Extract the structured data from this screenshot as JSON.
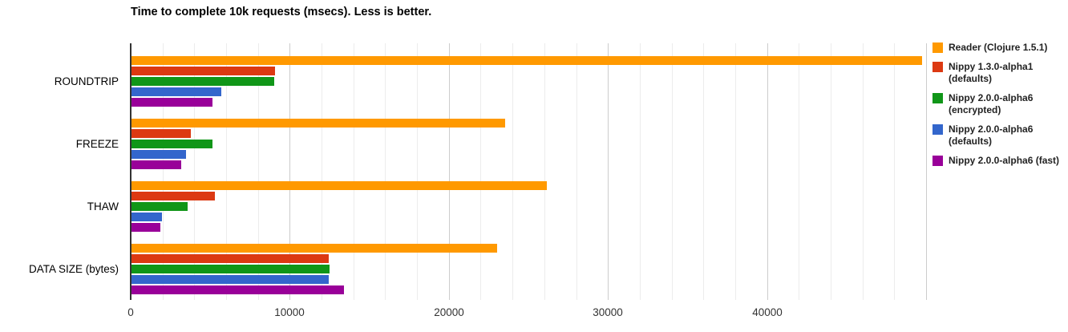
{
  "chart_data": {
    "type": "bar",
    "orientation": "horizontal",
    "title": "Time to complete 10k requests (msecs). Less is better.",
    "xlabel": "",
    "ylabel": "",
    "categories": [
      "ROUNDTRIP",
      "FREEZE",
      "THAW",
      "DATA SIZE (bytes)"
    ],
    "series": [
      {
        "name": "Reader (Clojure 1.5.1)",
        "label_lines": [
          "Reader (Clojure 1.5.1)"
        ],
        "color": "#FF9900",
        "values": [
          49700,
          23500,
          26100,
          23000
        ]
      },
      {
        "name": "Nippy 1.3.0-alpha1 (defaults)",
        "label_lines": [
          "Nippy 1.3.0-alpha1",
          "(defaults)"
        ],
        "color": "#DC3912",
        "values": [
          9000,
          3750,
          5250,
          12400
        ]
      },
      {
        "name": "Nippy 2.0.0-alpha6 (encrypted)",
        "label_lines": [
          "Nippy 2.0.0-alpha6",
          "(encrypted)"
        ],
        "color": "#109618",
        "values": [
          8950,
          5100,
          3550,
          12450
        ]
      },
      {
        "name": "Nippy 2.0.0-alpha6 (defaults)",
        "label_lines": [
          "Nippy 2.0.0-alpha6",
          "(defaults)"
        ],
        "color": "#3366CC",
        "values": [
          5650,
          3450,
          1900,
          12400
        ]
      },
      {
        "name": "Nippy 2.0.0-alpha6 (fast)",
        "label_lines": [
          "Nippy 2.0.0-alpha6 (fast)"
        ],
        "color": "#990099",
        "values": [
          5100,
          3100,
          1800,
          13350
        ]
      }
    ],
    "x_axis": {
      "min": 0,
      "max": 50000,
      "major_step": 10000,
      "minor_step": 2000,
      "tick_labels": [
        "0",
        "10000",
        "20000",
        "30000",
        "40000"
      ]
    },
    "legend_position": "right",
    "grid": true,
    "colors": {
      "background": "#ffffff",
      "axis_line": "#333333",
      "grid_minor": "#ececec",
      "grid_major": "#cccccc",
      "title_text": "#000000",
      "category_text": "#000000",
      "tick_text": "#333333",
      "legend_text": "#222222"
    }
  }
}
